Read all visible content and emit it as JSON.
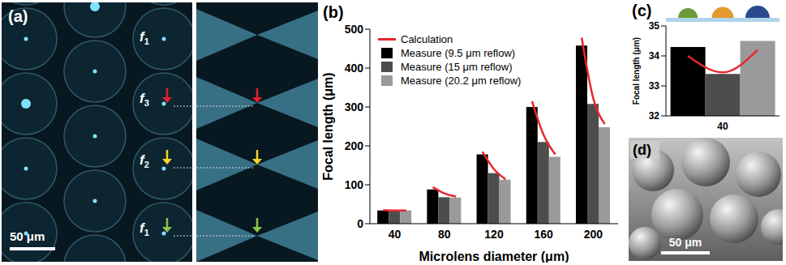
{
  "chart_data": [
    {
      "type": "bar",
      "panel_label": "(b)",
      "x_label": "Microlens diameter (μm)",
      "y_label": "Focal length (μm)",
      "categories": [
        "40",
        "80",
        "120",
        "160",
        "200"
      ],
      "series": [
        {
          "name": "Calculation",
          "type": "line",
          "color": "#e8262b",
          "values": [
            [
              35,
              34,
              34
            ],
            [
              94,
              78,
              70
            ],
            [
              185,
              140,
              114
            ],
            [
              315,
              228,
              178
            ],
            [
              478,
              322,
              256
            ]
          ]
        },
        {
          "name": "Measure (9.5 μm reflow)",
          "color": "#000000",
          "values": [
            34,
            88,
            178,
            300,
            458
          ]
        },
        {
          "name": "Measure (15 μm reflow)",
          "color": "#4d4d4d",
          "values": [
            33,
            68,
            130,
            210,
            308
          ]
        },
        {
          "name": "Measure (20.2 μm reflow)",
          "color": "#9a9a9a",
          "values": [
            34,
            67,
            113,
            172,
            248
          ]
        }
      ],
      "ylim": [
        0,
        500
      ],
      "yticks": [
        0,
        100,
        200,
        300,
        400,
        500
      ],
      "legend": "upper left"
    },
    {
      "type": "bar",
      "panel_label": "(c)",
      "y_label": "Focal length (μm)",
      "categories": [
        "40"
      ],
      "series": [
        {
          "type": "line",
          "color": "#e8262b",
          "values": [
            [
              34.0,
              33.45,
              34.2
            ]
          ]
        },
        {
          "color": "#000000",
          "values": [
            34.3
          ]
        },
        {
          "color": "#4d4d4d",
          "values": [
            33.4
          ]
        },
        {
          "color": "#9a9a9a",
          "values": [
            34.5
          ]
        }
      ],
      "ylim": [
        32,
        35
      ],
      "yticks": [
        32,
        33,
        34,
        35
      ]
    }
  ],
  "images": [
    {
      "panel_label": "(a)",
      "labels": [
        "f1",
        "f3",
        "f2",
        "f1"
      ],
      "scale_bar": "50 μm"
    },
    {
      "panel_label": "(d)",
      "scale_bar": "50 μm"
    }
  ]
}
